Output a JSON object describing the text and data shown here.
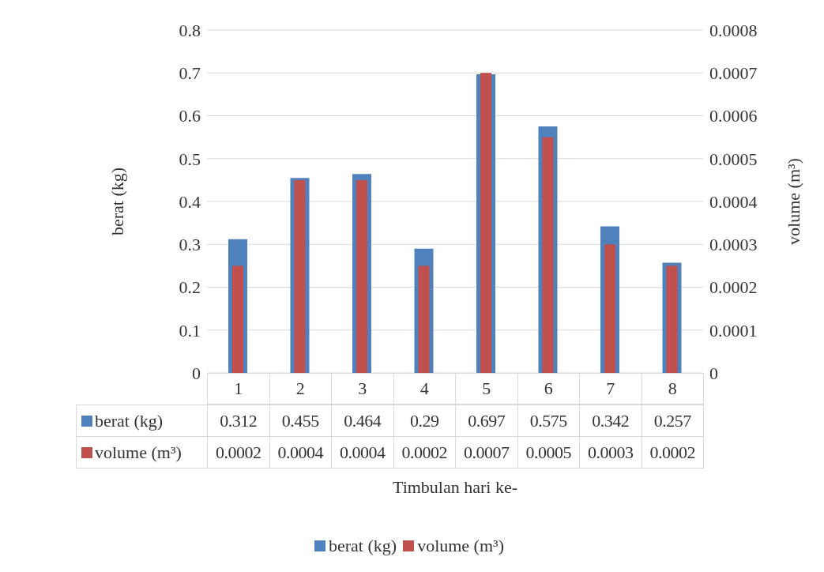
{
  "chart_data": {
    "type": "bar",
    "xlabel": "Timbulan hari ke-",
    "ylabel": "berat (kg)",
    "y2label": "volume (m³)",
    "categories": [
      "1",
      "2",
      "3",
      "4",
      "5",
      "6",
      "7",
      "8"
    ],
    "series": [
      {
        "name": "berat (kg)",
        "color": "#4f81bd",
        "values": [
          0.312,
          0.455,
          0.464,
          0.29,
          0.697,
          0.575,
          0.342,
          0.257
        ],
        "value_labels": [
          "0.312",
          "0.455",
          "0.464",
          "0.29",
          "0.697",
          "0.575",
          "0.342",
          "0.257"
        ]
      },
      {
        "name": "volume (m³)",
        "color": "#c0504d",
        "axis": "y2",
        "values": [
          0.00025,
          0.00045,
          0.00045,
          0.00025,
          0.0007,
          0.00055,
          0.0003,
          0.00025
        ],
        "value_labels": [
          "0.0002",
          "0.0004",
          "0.0004",
          "0.0002",
          "0.0007",
          "0.0005",
          "0.0003",
          "0.0002"
        ]
      }
    ],
    "ylim": [
      0,
      0.8
    ],
    "yticks": [
      0,
      0.1,
      0.2,
      0.3,
      0.4,
      0.5,
      0.6,
      0.7,
      0.8
    ],
    "y2lim": [
      0,
      0.0008
    ],
    "y2ticks": [
      0,
      0.0001,
      0.0002,
      0.0003,
      0.0004,
      0.0005,
      0.0006,
      0.0007,
      0.0008
    ],
    "grid": "y",
    "legend": "bottom"
  }
}
